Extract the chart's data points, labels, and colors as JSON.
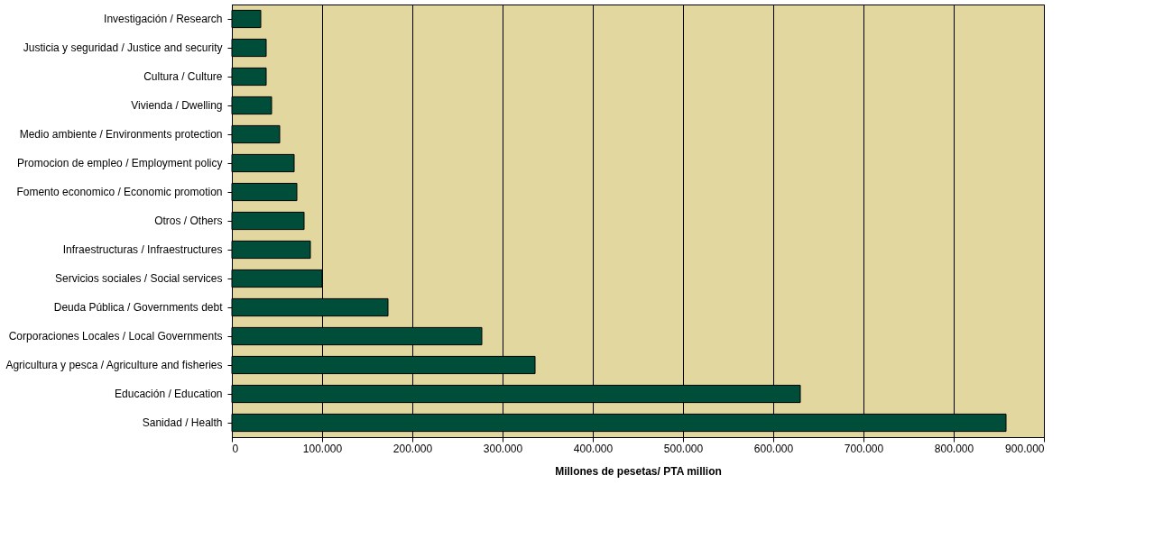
{
  "chart_data": {
    "type": "bar",
    "orientation": "horizontal",
    "xlabel": "Millones de pesetas/ PTA million",
    "categories": [
      "Investigación / Research",
      "Justicia y seguridad / Justice and security",
      "Cultura / Culture",
      "Vivienda / Dwelling",
      "Medio ambiente / Environments protection",
      "Promocion de empleo / Employment policy",
      "Fomento economico / Economic promotion",
      "Otros / Others",
      "Infraestructuras / Infraestructures",
      "Servicios sociales / Social services",
      "Deuda Pública / Governments debt",
      "Corporaciones Locales / Local Governments",
      "Agricultura y pesca / Agriculture and fisheries",
      "Educación / Education",
      "Sanidad / Health"
    ],
    "values": [
      32000,
      38000,
      38000,
      44000,
      53000,
      69000,
      72000,
      80000,
      87000,
      100000,
      173000,
      277000,
      336000,
      630000,
      858000
    ],
    "color": "#004d3a",
    "xlim": [
      0,
      900000
    ],
    "xticks": [
      0,
      {
        "value": 100000,
        "label": "100.000"
      },
      {
        "value": 200000,
        "label": "200.000"
      },
      {
        "value": 300000,
        "label": "300.000"
      },
      {
        "value": 400000,
        "label": "400.000"
      },
      {
        "value": 500000,
        "label": "500.000"
      },
      {
        "value": 600000,
        "label": "600.000"
      },
      {
        "value": 700000,
        "label": "700.000"
      },
      {
        "value": 800000,
        "label": "800.000"
      },
      {
        "value": 900000,
        "label": "900.000"
      }
    ],
    "grid": "x"
  }
}
